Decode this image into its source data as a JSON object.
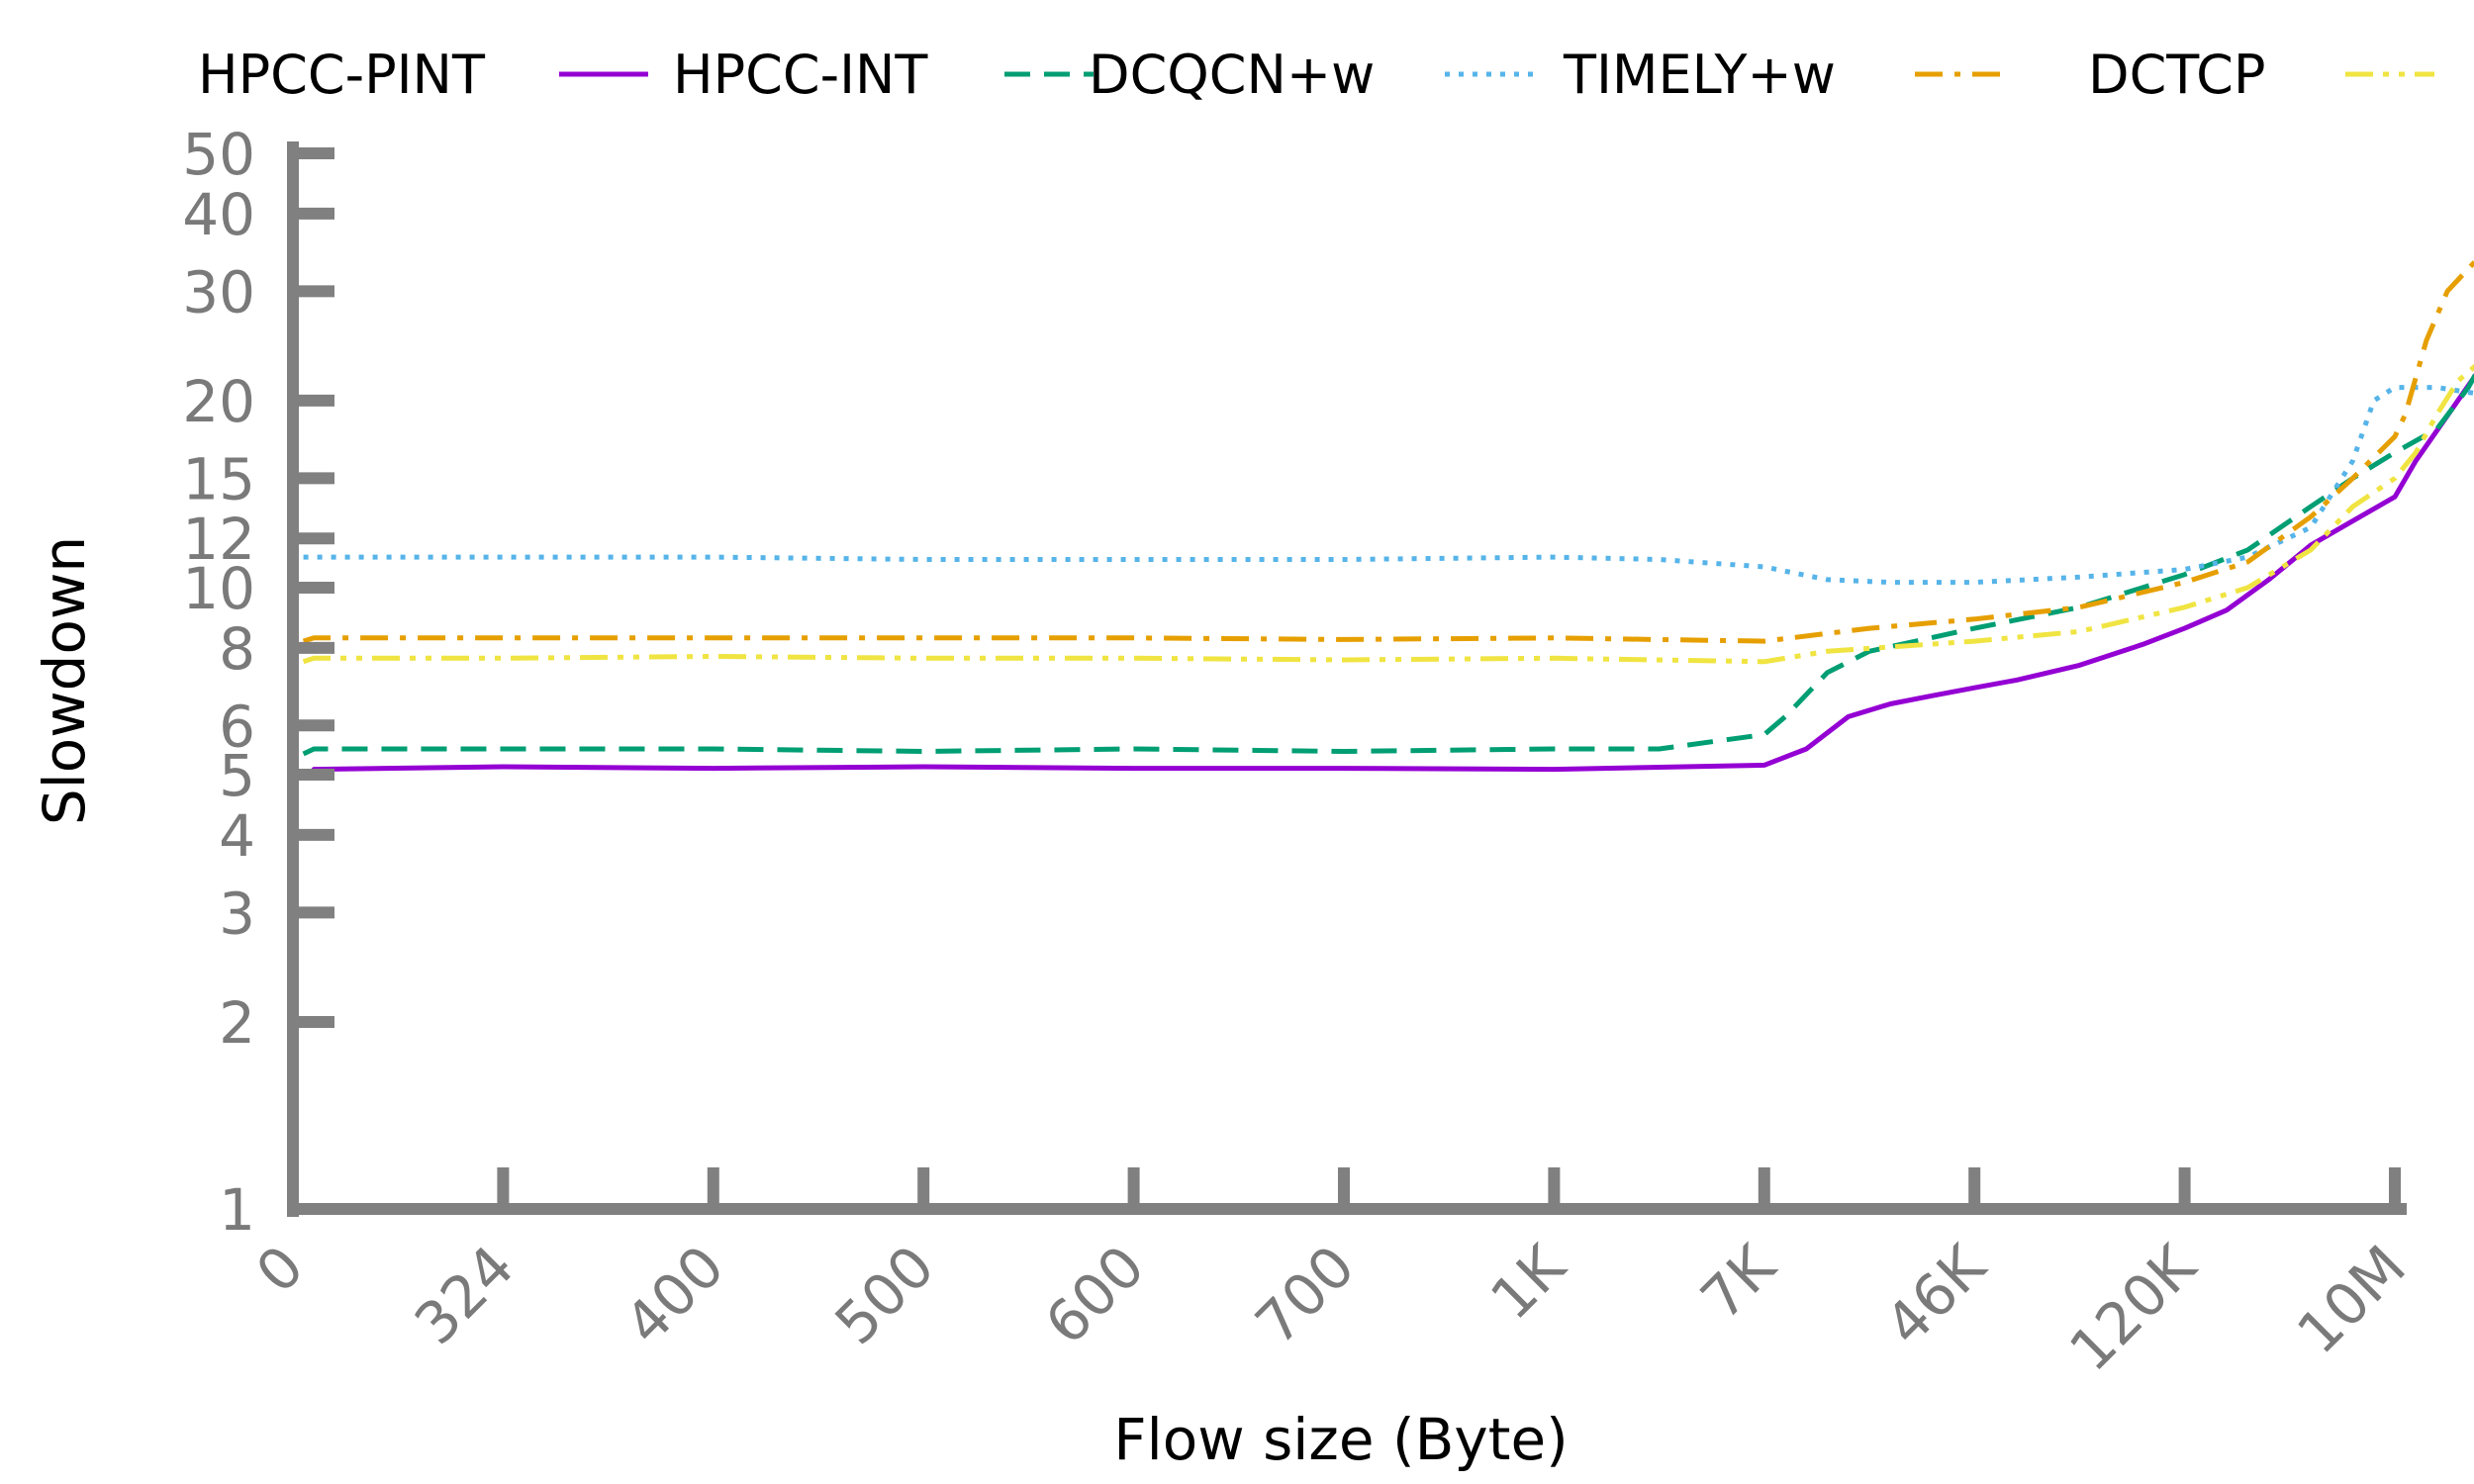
{
  "chart_data": {
    "type": "line",
    "title": "",
    "xlabel": "Flow size (Byte)",
    "ylabel": "Slowdown",
    "x_scale": "categorical",
    "y_scale": "log",
    "ylim": [
      1,
      50
    ],
    "grid": false,
    "legend_position": "top",
    "x_ticks": [
      "0",
      "324",
      "400",
      "500",
      "600",
      "700",
      "1K",
      "7K",
      "46K",
      "120K",
      "10M"
    ],
    "y_ticks": [
      "1",
      "2",
      "3",
      "4",
      "5",
      "6",
      "8",
      "10",
      "12",
      "15",
      "20",
      "30",
      "40",
      "50"
    ],
    "legend_order": [
      "HPCC-PINT",
      "HPCC-INT",
      "DCQCN+w",
      "TIMELY+w",
      "DCTCP"
    ],
    "series": [
      {
        "name": "HPCC-PINT",
        "color": "#9400D3",
        "dash": "solid",
        "points": [
          [
            0.1,
            5.1
          ],
          [
            1,
            5.15
          ],
          [
            2,
            5.12
          ],
          [
            3,
            5.15
          ],
          [
            4,
            5.12
          ],
          [
            5,
            5.12
          ],
          [
            6,
            5.1
          ],
          [
            7,
            5.18
          ],
          [
            7.2,
            5.5
          ],
          [
            7.4,
            6.2
          ],
          [
            7.6,
            6.5
          ],
          [
            7.8,
            6.7
          ],
          [
            8,
            6.9
          ],
          [
            8.2,
            7.1
          ],
          [
            8.5,
            7.5
          ],
          [
            8.8,
            8.1
          ],
          [
            9,
            8.6
          ],
          [
            9.2,
            9.2
          ],
          [
            9.4,
            10.3
          ],
          [
            9.6,
            11.7
          ],
          [
            9.8,
            12.8
          ],
          [
            10,
            14
          ],
          [
            10.1,
            16
          ],
          [
            10.3,
            20
          ],
          [
            10.5,
            25
          ],
          [
            10.55,
            29
          ],
          [
            10.65,
            27.5
          ]
        ]
      },
      {
        "name": "HPCC-INT",
        "color": "#009E73",
        "dash": "dashed",
        "points": [
          [
            0.05,
            5.4
          ],
          [
            0.1,
            5.5
          ],
          [
            1,
            5.5
          ],
          [
            2,
            5.5
          ],
          [
            3,
            5.45
          ],
          [
            4,
            5.5
          ],
          [
            5,
            5.45
          ],
          [
            6,
            5.5
          ],
          [
            6.5,
            5.5
          ],
          [
            7,
            5.8
          ],
          [
            7.1,
            6.2
          ],
          [
            7.3,
            7.3
          ],
          [
            7.5,
            7.9
          ],
          [
            8,
            8.6
          ],
          [
            8.5,
            9.3
          ],
          [
            9,
            10.5
          ],
          [
            9.3,
            11.5
          ],
          [
            9.6,
            13.5
          ],
          [
            9.8,
            15
          ],
          [
            10,
            16.5
          ],
          [
            10.2,
            18
          ],
          [
            10.35,
            21
          ],
          [
            10.5,
            26
          ],
          [
            10.6,
            31
          ],
          [
            10.65,
            34
          ]
        ]
      },
      {
        "name": "DCQCN+w",
        "color": "#56B4E9",
        "dash": "dotted",
        "points": [
          [
            0.05,
            11.2
          ],
          [
            1,
            11.2
          ],
          [
            2,
            11.2
          ],
          [
            3,
            11.1
          ],
          [
            4,
            11.1
          ],
          [
            5,
            11.1
          ],
          [
            6,
            11.2
          ],
          [
            6.5,
            11.1
          ],
          [
            7,
            10.8
          ],
          [
            7.3,
            10.3
          ],
          [
            7.6,
            10.2
          ],
          [
            8,
            10.2
          ],
          [
            8.5,
            10.4
          ],
          [
            9,
            10.7
          ],
          [
            9.3,
            11.2
          ],
          [
            9.6,
            12.5
          ],
          [
            9.8,
            16
          ],
          [
            9.9,
            20
          ],
          [
            10,
            21
          ],
          [
            10.2,
            21
          ],
          [
            10.4,
            20.5
          ],
          [
            10.6,
            20
          ],
          [
            10.65,
            19.5
          ]
        ]
      },
      {
        "name": "TIMELY+w",
        "color": "#E69F00",
        "dash": "dashdot",
        "points": [
          [
            0.05,
            8.2
          ],
          [
            0.1,
            8.3
          ],
          [
            1,
            8.3
          ],
          [
            2,
            8.3
          ],
          [
            3,
            8.3
          ],
          [
            4,
            8.3
          ],
          [
            5,
            8.25
          ],
          [
            6,
            8.3
          ],
          [
            7,
            8.2
          ],
          [
            7.5,
            8.6
          ],
          [
            8,
            8.9
          ],
          [
            8.5,
            9.3
          ],
          [
            9,
            10.2
          ],
          [
            9.3,
            11
          ],
          [
            9.6,
            13
          ],
          [
            9.8,
            15
          ],
          [
            10,
            17.5
          ],
          [
            10.05,
            19
          ],
          [
            10.15,
            25
          ],
          [
            10.25,
            30
          ],
          [
            10.4,
            34
          ],
          [
            10.5,
            36
          ],
          [
            10.55,
            36.5
          ],
          [
            10.62,
            33
          ]
        ]
      },
      {
        "name": "DCTCP",
        "color": "#F0E442",
        "dash": "dashdotdot",
        "points": [
          [
            0.05,
            7.6
          ],
          [
            0.1,
            7.7
          ],
          [
            1,
            7.7
          ],
          [
            2,
            7.75
          ],
          [
            3,
            7.7
          ],
          [
            4,
            7.7
          ],
          [
            5,
            7.65
          ],
          [
            6,
            7.7
          ],
          [
            7,
            7.6
          ],
          [
            7.3,
            7.9
          ],
          [
            8,
            8.2
          ],
          [
            8.5,
            8.5
          ],
          [
            9,
            9.3
          ],
          [
            9.3,
            10
          ],
          [
            9.6,
            11.5
          ],
          [
            9.8,
            13.5
          ],
          [
            10,
            15
          ],
          [
            10.1,
            16.5
          ],
          [
            10.2,
            19
          ],
          [
            10.3,
            21.5
          ],
          [
            10.4,
            23
          ],
          [
            10.5,
            23.5
          ],
          [
            10.55,
            23
          ],
          [
            10.62,
            19.5
          ]
        ]
      }
    ]
  }
}
